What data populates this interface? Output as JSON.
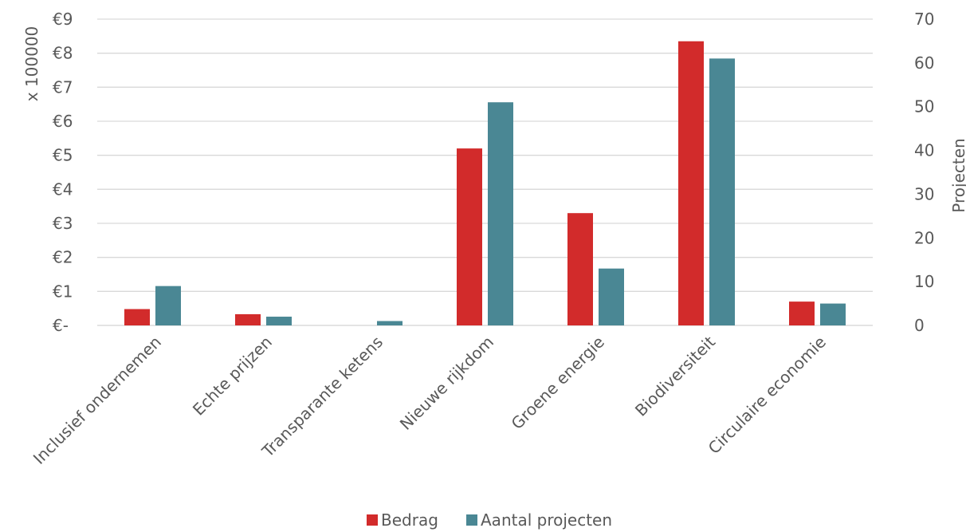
{
  "chart_data": {
    "type": "bar",
    "categories": [
      "Inclusief ondernemen",
      "Echte prijzen",
      "Transparante ketens",
      "Nieuwe rijkdom",
      "Groene energie",
      "Biodiversiteit",
      "Circulaire economie"
    ],
    "series": [
      {
        "name": "Bedrag",
        "axis": "left",
        "color": "#d22b2b",
        "values": [
          0.48,
          0.33,
          0,
          5.2,
          3.3,
          8.35,
          0.7
        ]
      },
      {
        "name": "Aantal projecten",
        "axis": "right",
        "color": "#4a8794",
        "values": [
          9,
          2,
          1,
          51,
          13,
          61,
          5
        ]
      }
    ],
    "left_axis": {
      "label": "x 100000",
      "ticks": [
        "€-",
        "€1",
        "€2",
        "€3",
        "€4",
        "€5",
        "€6",
        "€7",
        "€8",
        "€9"
      ],
      "ylim": [
        0,
        9
      ]
    },
    "right_axis": {
      "label": "Projecten",
      "ticks": [
        "0",
        "10",
        "20",
        "30",
        "40",
        "50",
        "60",
        "70"
      ],
      "ylim": [
        0,
        70
      ]
    },
    "grid": true,
    "legend": "bottom"
  }
}
